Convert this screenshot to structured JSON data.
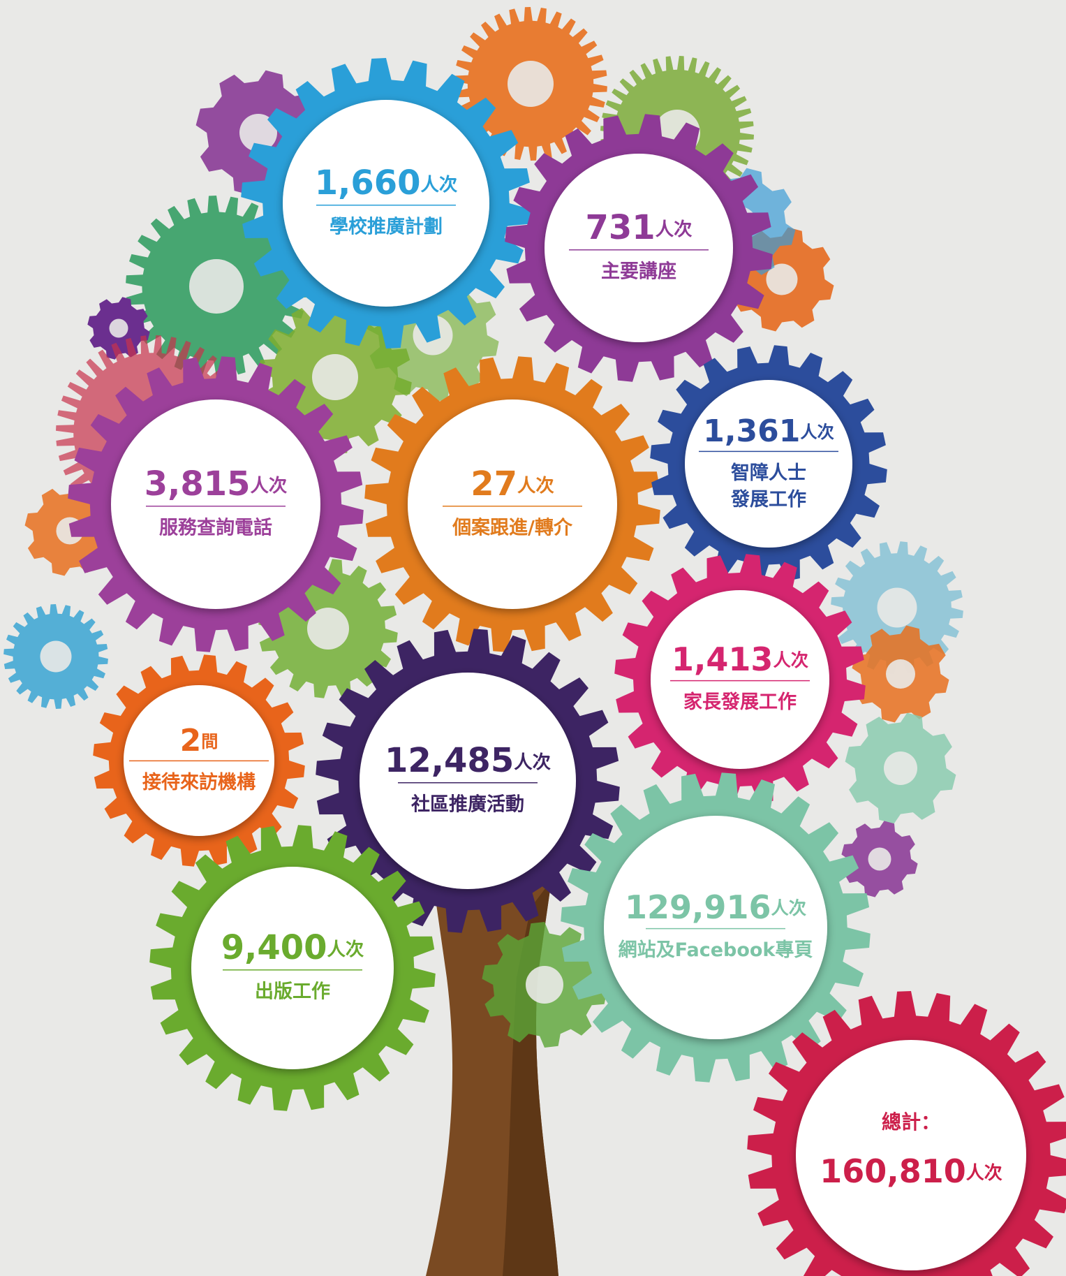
{
  "items": [
    {
      "number": "1,660",
      "unit": "人次",
      "label": [
        "學校推廣計劃"
      ]
    },
    {
      "number": "731",
      "unit": "人次",
      "label": [
        "主要講座"
      ]
    },
    {
      "number": "3,815",
      "unit": "人次",
      "label": [
        "服務查詢電話"
      ]
    },
    {
      "number": "27",
      "unit": "人次",
      "label": [
        "個案跟進/轉介"
      ]
    },
    {
      "number": "1,361",
      "unit": "人次",
      "label": [
        "智障人士",
        "發展工作"
      ]
    },
    {
      "number": "1,413",
      "unit": "人次",
      "label": [
        "家長發展工作"
      ]
    },
    {
      "number": "2",
      "unit": "間",
      "label": [
        "接待來訪機構"
      ]
    },
    {
      "number": "12,485",
      "unit": "人次",
      "label": [
        "社區推廣活動"
      ]
    },
    {
      "number": "9,400",
      "unit": "人次",
      "label": [
        "出版工作"
      ]
    },
    {
      "number": "129,916",
      "unit": "人次",
      "label": [
        "網站及Facebook專頁"
      ]
    }
  ],
  "total": {
    "label": "總計：",
    "number": "160,810",
    "unit": "人次"
  }
}
